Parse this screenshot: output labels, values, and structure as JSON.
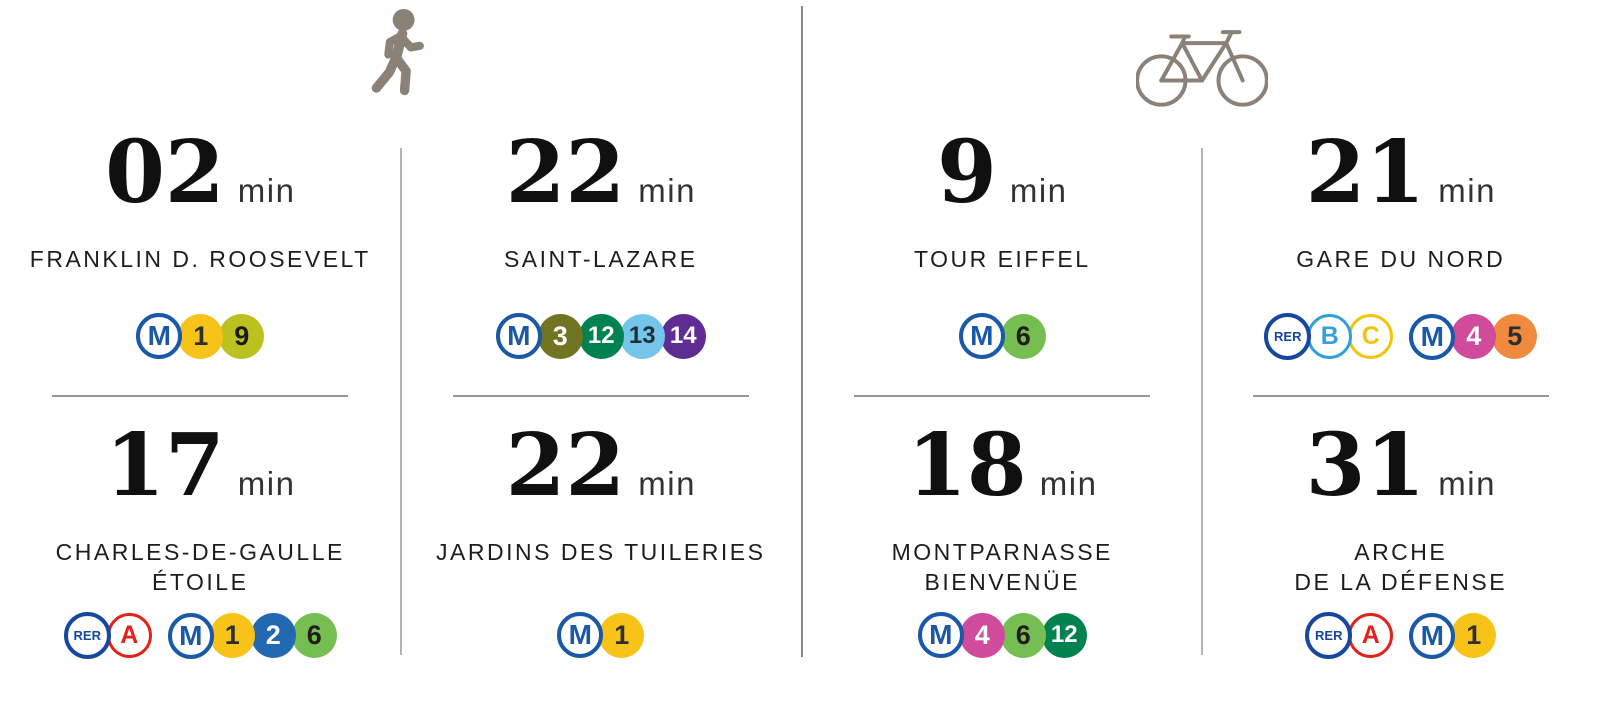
{
  "colors": {
    "icon": "#8B8177",
    "center_divider": "#888888",
    "column_divider": "#b3b3b3",
    "row_divider": "#979797",
    "time_text": "#101010",
    "unit_text": "#333333",
    "station_text": "#1d1d1d",
    "metro_blue": "#1959A8",
    "rer_navy": "#17479E"
  },
  "sections": [
    {
      "id": "walk",
      "icon": "walking-person-icon",
      "columns": [
        {
          "cells": [
            {
              "time": "02",
              "unit": "min",
              "station": "FRANKLIN D. ROOSEVELT",
              "badge_groups": [
                [
                  {
                    "kind": "metro-roundel",
                    "label": "M"
                  },
                  {
                    "kind": "line",
                    "label": "1",
                    "bg": "#F7C318",
                    "fg": "#2F2F2F"
                  },
                  {
                    "kind": "line",
                    "label": "9",
                    "bg": "#BBC11F",
                    "fg": "#1A1A1A"
                  }
                ]
              ]
            },
            {
              "time": "17",
              "unit": "min",
              "station": "CHARLES-DE-GAULLE\nÉTOILE",
              "badge_groups": [
                [
                  {
                    "kind": "rer-roundel",
                    "label": "RER"
                  },
                  {
                    "kind": "letter-ring",
                    "label": "A",
                    "color": "#E2231A"
                  }
                ],
                [
                  {
                    "kind": "metro-roundel",
                    "label": "M"
                  },
                  {
                    "kind": "line",
                    "label": "1",
                    "bg": "#F7C318",
                    "fg": "#2F2F2F"
                  },
                  {
                    "kind": "line",
                    "label": "2",
                    "bg": "#2269B2",
                    "fg": "#ffffff"
                  },
                  {
                    "kind": "line",
                    "label": "6",
                    "bg": "#77BE52",
                    "fg": "#1E1E1E"
                  }
                ]
              ]
            }
          ]
        },
        {
          "cells": [
            {
              "time": "22",
              "unit": "min",
              "station": "SAINT-LAZARE",
              "badge_groups": [
                [
                  {
                    "kind": "metro-roundel",
                    "label": "M"
                  },
                  {
                    "kind": "line",
                    "label": "3",
                    "bg": "#717423",
                    "fg": "#ffffff"
                  },
                  {
                    "kind": "line",
                    "label": "12",
                    "bg": "#008150",
                    "fg": "#ffffff"
                  },
                  {
                    "kind": "line",
                    "label": "13",
                    "bg": "#75C4E9",
                    "fg": "#1F2F38"
                  },
                  {
                    "kind": "line",
                    "label": "14",
                    "bg": "#5F2C94",
                    "fg": "#ffffff"
                  }
                ]
              ]
            },
            {
              "time": "22",
              "unit": "min",
              "station": "JARDINS DES TUILERIES",
              "badge_groups": [
                [
                  {
                    "kind": "metro-roundel",
                    "label": "M"
                  },
                  {
                    "kind": "line",
                    "label": "1",
                    "bg": "#F7C318",
                    "fg": "#2F2F2F"
                  }
                ]
              ]
            }
          ]
        }
      ]
    },
    {
      "id": "bike",
      "icon": "bicycle-icon",
      "columns": [
        {
          "cells": [
            {
              "time": "9",
              "unit": "min",
              "station": "TOUR EIFFEL",
              "badge_groups": [
                [
                  {
                    "kind": "metro-roundel",
                    "label": "M"
                  },
                  {
                    "kind": "line",
                    "label": "6",
                    "bg": "#77BE52",
                    "fg": "#1E1E1E"
                  }
                ]
              ]
            },
            {
              "time": "18",
              "unit": "min",
              "station": "MONTPARNASSE\nBIENVENÜE",
              "badge_groups": [
                [
                  {
                    "kind": "metro-roundel",
                    "label": "M"
                  },
                  {
                    "kind": "line",
                    "label": "4",
                    "bg": "#D14B9D",
                    "fg": "#ffffff"
                  },
                  {
                    "kind": "line",
                    "label": "6",
                    "bg": "#77BE52",
                    "fg": "#1E1E1E"
                  },
                  {
                    "kind": "line",
                    "label": "12",
                    "bg": "#008150",
                    "fg": "#ffffff"
                  }
                ]
              ]
            }
          ]
        },
        {
          "cells": [
            {
              "time": "21",
              "unit": "min",
              "station": "GARE DU NORD",
              "badge_groups": [
                [
                  {
                    "kind": "rer-roundel",
                    "label": "RER"
                  },
                  {
                    "kind": "letter-ring",
                    "label": "B",
                    "color": "#33A0DC"
                  },
                  {
                    "kind": "letter-ring",
                    "label": "C",
                    "color": "#F2C50B"
                  }
                ],
                [
                  {
                    "kind": "metro-roundel",
                    "label": "M"
                  },
                  {
                    "kind": "line",
                    "label": "4",
                    "bg": "#D14B9D",
                    "fg": "#ffffff"
                  },
                  {
                    "kind": "line",
                    "label": "5",
                    "bg": "#F08A3F",
                    "fg": "#2E2E2E"
                  }
                ]
              ]
            },
            {
              "time": "31",
              "unit": "min",
              "station": "ARCHE\nDE LA DÉFENSE",
              "badge_groups": [
                [
                  {
                    "kind": "rer-roundel",
                    "label": "RER"
                  },
                  {
                    "kind": "letter-ring",
                    "label": "A",
                    "color": "#E2231A"
                  }
                ],
                [
                  {
                    "kind": "metro-roundel",
                    "label": "M"
                  },
                  {
                    "kind": "line",
                    "label": "1",
                    "bg": "#F7C318",
                    "fg": "#2F2F2F"
                  }
                ]
              ]
            }
          ]
        }
      ]
    }
  ]
}
